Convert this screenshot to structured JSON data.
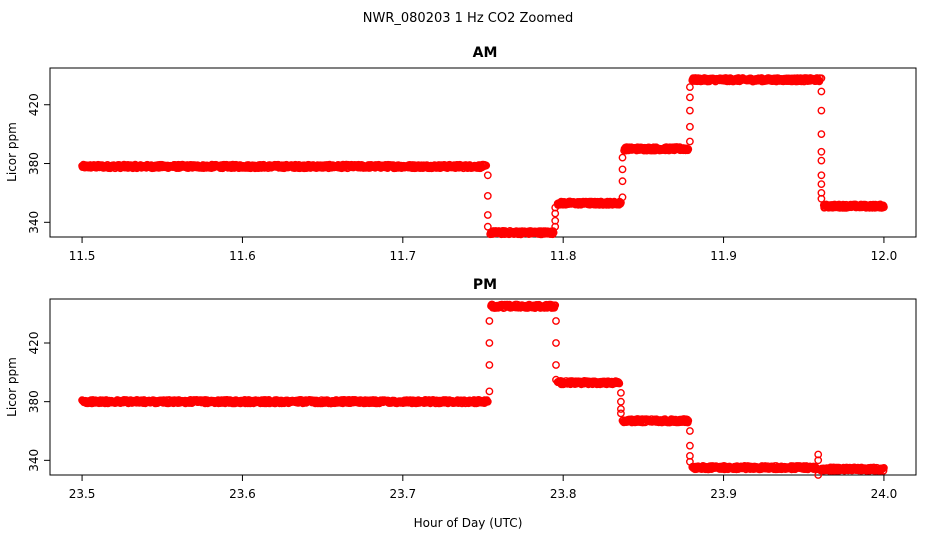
{
  "figure": {
    "title": "NWR_080203  1 Hz CO2 Zoomed",
    "xlabel": "Hour of Day (UTC)"
  },
  "colors": {
    "points": "#ff0000",
    "axes": "#000000",
    "background": "#ffffff"
  },
  "chart_data": [
    {
      "type": "scatter",
      "title": "AM",
      "xlabel": "",
      "ylabel": "Licor ppm",
      "xlim": [
        11.48,
        12.02
      ],
      "ylim": [
        330,
        445
      ],
      "x_ticks": [
        "11.5",
        "11.6",
        "11.7",
        "11.8",
        "11.9",
        "12.0"
      ],
      "y_ticks": [
        "340",
        "380",
        "420"
      ],
      "grid": false,
      "legend": "none",
      "marker": "open-circle",
      "series": [
        {
          "segments": [
            {
              "x_start": 11.5,
              "x_end": 11.752,
              "y": 378
            },
            {
              "x_start": 11.7545,
              "x_end": 11.794,
              "y": 333
            },
            {
              "x_start": 11.7965,
              "x_end": 11.836,
              "y": 353
            },
            {
              "x_start": 11.838,
              "x_end": 11.878,
              "y": 390
            },
            {
              "x_start": 11.8805,
              "x_end": 11.96,
              "y": 437
            },
            {
              "x_start": 11.9625,
              "x_end": 12.0,
              "y": 351
            }
          ],
          "transitions": [
            {
              "x": 11.753,
              "y": [
                372,
                358,
                345,
                337
              ]
            },
            {
              "x": 11.795,
              "y": [
                337,
                341,
                346,
                350
              ]
            },
            {
              "x": 11.837,
              "y": [
                357,
                368,
                376,
                384
              ]
            },
            {
              "x": 11.879,
              "y": [
                395,
                405,
                416,
                425,
                432
              ]
            },
            {
              "x": 11.961,
              "y": [
                438,
                429,
                416,
                400,
                388,
                382,
                372,
                366,
                360,
                356
              ]
            }
          ]
        }
      ]
    },
    {
      "type": "scatter",
      "title": "PM",
      "xlabel": "",
      "ylabel": "Licor ppm",
      "xlim": [
        23.48,
        24.02
      ],
      "ylim": [
        330,
        450
      ],
      "x_ticks": [
        "23.5",
        "23.6",
        "23.7",
        "23.8",
        "23.9",
        "24.0"
      ],
      "y_ticks": [
        "340",
        "380",
        "420"
      ],
      "grid": false,
      "legend": "none",
      "marker": "open-circle",
      "series": [
        {
          "segments": [
            {
              "x_start": 23.5,
              "x_end": 23.753,
              "y": 380
            },
            {
              "x_start": 23.755,
              "x_end": 23.795,
              "y": 445
            },
            {
              "x_start": 23.7965,
              "x_end": 23.835,
              "y": 393
            },
            {
              "x_start": 23.837,
              "x_end": 23.878,
              "y": 367
            },
            {
              "x_start": 23.8805,
              "x_end": 23.958,
              "y": 335
            },
            {
              "x_start": 23.9605,
              "x_end": 24.0,
              "y": 334
            }
          ],
          "transitions": [
            {
              "x": 23.754,
              "y": [
                387,
                405,
                420,
                435
              ]
            },
            {
              "x": 23.7955,
              "y": [
                435,
                420,
                405,
                395
              ]
            },
            {
              "x": 23.836,
              "y": [
                386,
                380,
                375,
                372
              ]
            },
            {
              "x": 23.879,
              "y": [
                360,
                350,
                343,
                339
              ]
            },
            {
              "x": 23.959,
              "y": [
                340,
                344,
                330
              ]
            }
          ]
        }
      ]
    }
  ]
}
